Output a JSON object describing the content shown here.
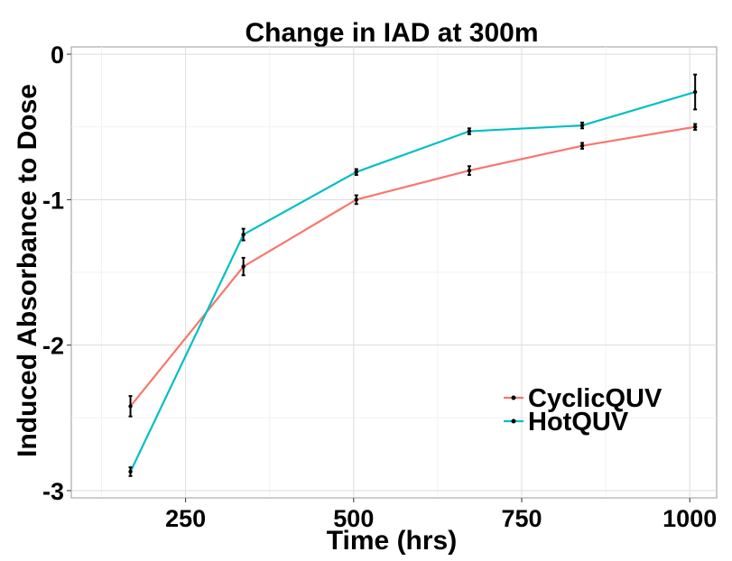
{
  "chart_data": {
    "type": "line",
    "title": "Change in IAD at 300m",
    "xlabel": "Time (hrs)",
    "ylabel": "Induced Absorbance to Dose",
    "xlim": [
      80,
      1040
    ],
    "ylim": [
      -3.05,
      0.05
    ],
    "xticks": [
      250,
      500,
      750,
      1000
    ],
    "xtick_labels": [
      "250",
      "500",
      "750",
      "1000"
    ],
    "yticks": [
      0,
      -1,
      -2,
      -3
    ],
    "ytick_labels": [
      "0",
      "-1",
      "-2",
      "-3"
    ],
    "grid": true,
    "legend_position": "bottom-right",
    "x": [
      168,
      336,
      504,
      672,
      840,
      1008
    ],
    "series": [
      {
        "name": "CyclicQUV",
        "color": "#F8766D",
        "values": [
          -2.42,
          -1.46,
          -1.0,
          -0.8,
          -0.63,
          -0.5
        ],
        "error": [
          0.07,
          0.06,
          0.03,
          0.03,
          0.02,
          0.02
        ]
      },
      {
        "name": "HotQUV",
        "color": "#00BFC4",
        "values": [
          -2.87,
          -1.24,
          -0.81,
          -0.53,
          -0.49,
          -0.26
        ],
        "error": [
          0.03,
          0.04,
          0.02,
          0.02,
          0.02,
          0.12
        ]
      }
    ]
  }
}
